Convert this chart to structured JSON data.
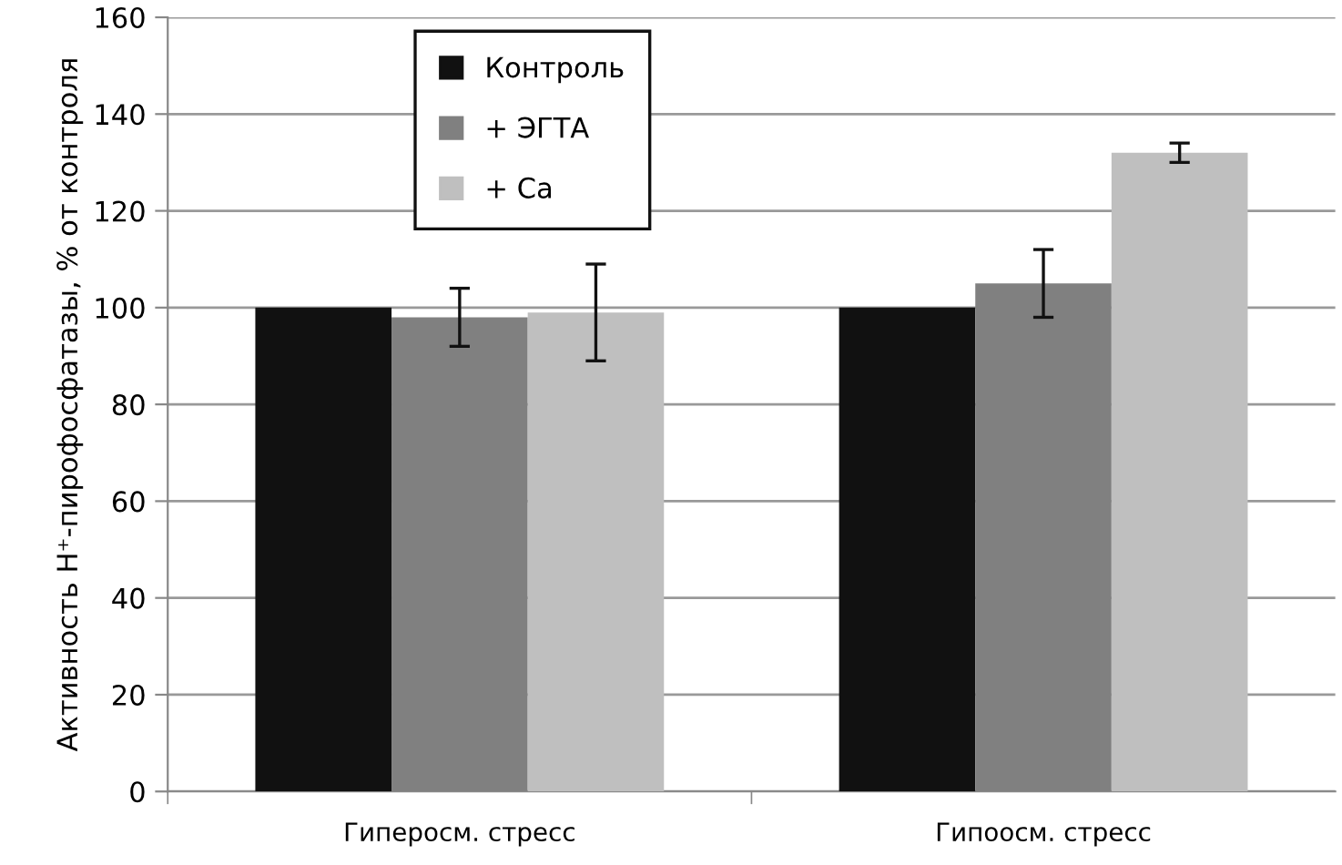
{
  "chart_data": {
    "type": "bar",
    "ylabel": "Активность H⁺-пирофосфатазы, % от контроля",
    "categories": [
      "Гиперосм. стресс",
      "Гипоосм. стресс"
    ],
    "series": [
      {
        "name": "Контроль",
        "color": "#111111",
        "values": [
          100,
          100
        ]
      },
      {
        "name": "+ ЭГТА",
        "color": "#808080",
        "values": [
          98,
          105
        ],
        "errors": [
          6,
          7
        ]
      },
      {
        "name": "+ Ca",
        "color": "#bfbfbf",
        "values": [
          99,
          132
        ],
        "errors": [
          10,
          2
        ]
      }
    ],
    "ylim": [
      0,
      160
    ],
    "yticks": [
      0,
      20,
      40,
      60,
      80,
      100,
      120,
      140,
      160
    ],
    "grid": "y",
    "legend": "top left"
  }
}
